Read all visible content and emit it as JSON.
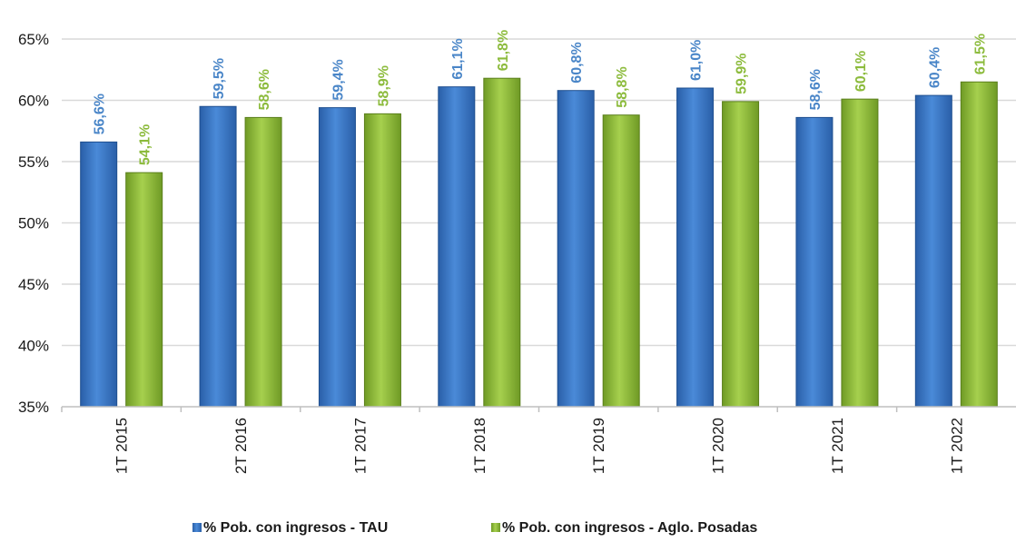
{
  "chart_data": {
    "type": "bar",
    "categories": [
      "1T 2015",
      "2T 2016",
      "1T 2017",
      "1T 2018",
      "1T 2019",
      "1T 2020",
      "1T 2021",
      "1T 2022"
    ],
    "series": [
      {
        "name": "% Pob. con ingresos - TAU",
        "values": [
          56.6,
          59.5,
          59.4,
          61.1,
          60.8,
          61.0,
          58.6,
          60.4
        ],
        "labels": [
          "56,6%",
          "59,5%",
          "59,4%",
          "61,1%",
          "60,8%",
          "61,0%",
          "58,6%",
          "60,4%"
        ],
        "color": "#3a78c9",
        "label_color": "#4a86c8"
      },
      {
        "name": "% Pob. con ingresos - Aglo. Posadas",
        "values": [
          54.1,
          58.6,
          58.9,
          61.8,
          58.8,
          59.9,
          60.1,
          61.5
        ],
        "labels": [
          "54,1%",
          "58,6%",
          "58,9%",
          "61,8%",
          "58,8%",
          "59,9%",
          "60,1%",
          "61,5%"
        ],
        "color": "#8fbf3a",
        "label_color": "#8cbb3c"
      }
    ],
    "ylim": [
      35,
      65
    ],
    "yticks": [
      35,
      40,
      45,
      50,
      55,
      60,
      65
    ],
    "ytick_labels": [
      "35%",
      "40%",
      "45%",
      "50%",
      "55%",
      "60%",
      "65%"
    ],
    "title": "",
    "xlabel": "",
    "ylabel": "",
    "grid": true,
    "legend_position": "bottom"
  }
}
